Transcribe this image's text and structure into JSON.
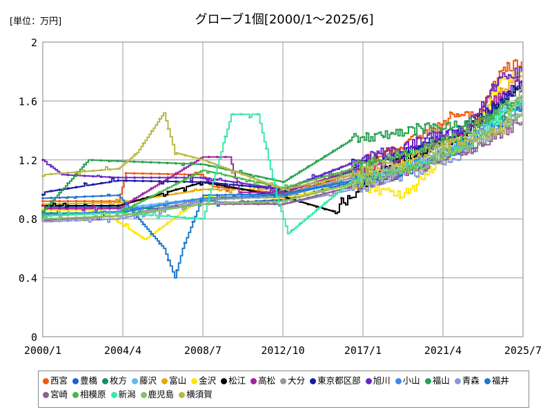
{
  "chart_data": {
    "type": "line",
    "title": "グローブ1個[2000/1～2025/6]",
    "unit_label": "[単位：万円]",
    "x_ticks": [
      "2000/1",
      "2004/4",
      "2008/7",
      "2012/10",
      "2017/1",
      "2021/4",
      "2025/7"
    ],
    "x_range": [
      "2000-01",
      "2025-07"
    ],
    "ylim": [
      0,
      2
    ],
    "y_ticks": [
      "0",
      "0.4",
      "0.8",
      "1.2",
      "1.6",
      "2"
    ],
    "grid": true,
    "legend_position": "bottom",
    "series": [
      {
        "name": "西宮",
        "color": "#f05a0a",
        "points": [
          [
            "2000-01",
            0.92
          ],
          [
            "2004-01",
            0.92
          ],
          [
            "2004-06",
            1.11
          ],
          [
            "2008-06",
            1.1
          ],
          [
            "2009-01",
            1.02
          ],
          [
            "2012-10",
            0.97
          ],
          [
            "2016-06",
            1.1
          ],
          [
            "2017-03",
            1.2
          ],
          [
            "2020-06",
            1.38
          ],
          [
            "2021-06",
            1.47
          ],
          [
            "2022-06",
            1.54
          ],
          [
            "2023-03",
            1.48
          ],
          [
            "2024-04",
            1.8
          ],
          [
            "2025-06",
            1.87
          ]
        ]
      },
      {
        "name": "豊橋",
        "color": "#1f5fd6",
        "points": [
          [
            "2000-01",
            0.88
          ],
          [
            "2003-06",
            0.88
          ],
          [
            "2006-01",
            0.87
          ],
          [
            "2008-07",
            0.9
          ],
          [
            "2012-10",
            0.93
          ],
          [
            "2016-06",
            1.05
          ],
          [
            "2019-06",
            1.12
          ],
          [
            "2022-06",
            1.3
          ],
          [
            "2024-01",
            1.55
          ],
          [
            "2025-06",
            1.7
          ]
        ]
      },
      {
        "name": "枚方",
        "color": "#149060",
        "points": [
          [
            "2000-01",
            0.84
          ],
          [
            "2004-01",
            0.84
          ],
          [
            "2007-06",
            0.92
          ],
          [
            "2008-07",
            0.92
          ],
          [
            "2012-10",
            0.99
          ],
          [
            "2016-06",
            1.12
          ],
          [
            "2019-06",
            1.24
          ],
          [
            "2022-06",
            1.4
          ],
          [
            "2024-06",
            1.56
          ],
          [
            "2025-06",
            1.6
          ]
        ]
      },
      {
        "name": "藤沢",
        "color": "#60b8f0",
        "points": [
          [
            "2000-01",
            0.86
          ],
          [
            "2004-01",
            0.87
          ],
          [
            "2008-07",
            0.94
          ],
          [
            "2012-10",
            0.97
          ],
          [
            "2016-06",
            1.08
          ],
          [
            "2019-06",
            1.19
          ],
          [
            "2022-06",
            1.34
          ],
          [
            "2025-06",
            1.62
          ]
        ]
      },
      {
        "name": "富山",
        "color": "#e8a800",
        "points": [
          [
            "2000-01",
            0.9
          ],
          [
            "2004-01",
            0.91
          ],
          [
            "2008-07",
            1.0
          ],
          [
            "2012-10",
            1.0
          ],
          [
            "2016-06",
            1.1
          ],
          [
            "2019-06",
            1.2
          ],
          [
            "2022-06",
            1.38
          ],
          [
            "2024-06",
            1.68
          ],
          [
            "2025-06",
            1.76
          ]
        ]
      },
      {
        "name": "金沢",
        "color": "#ffe600",
        "points": [
          [
            "2000-01",
            0.86
          ],
          [
            "2003-01",
            0.86
          ],
          [
            "2005-06",
            0.66
          ],
          [
            "2008-07",
            0.95
          ],
          [
            "2012-10",
            0.94
          ],
          [
            "2016-06",
            1.03
          ],
          [
            "2019-06",
            0.97
          ],
          [
            "2020-06",
            1.13
          ],
          [
            "2022-06",
            1.3
          ],
          [
            "2024-06",
            1.76
          ],
          [
            "2025-06",
            1.8
          ]
        ]
      },
      {
        "name": "松江",
        "color": "#000000",
        "points": [
          [
            "2000-01",
            0.89
          ],
          [
            "2004-01",
            0.89
          ],
          [
            "2008-07",
            1.05
          ],
          [
            "2012-10",
            0.95
          ],
          [
            "2015-06",
            0.85
          ],
          [
            "2016-06",
            0.97
          ],
          [
            "2017-06",
            1.08
          ],
          [
            "2019-06",
            1.22
          ],
          [
            "2022-06",
            1.38
          ],
          [
            "2024-06",
            1.62
          ],
          [
            "2025-06",
            1.68
          ]
        ]
      },
      {
        "name": "高松",
        "color": "#a020a0",
        "points": [
          [
            "2000-01",
            0.87
          ],
          [
            "2004-01",
            0.87
          ],
          [
            "2008-07",
            1.22
          ],
          [
            "2009-12",
            1.22
          ],
          [
            "2010-06",
            0.98
          ],
          [
            "2012-10",
            0.98
          ],
          [
            "2016-06",
            1.13
          ],
          [
            "2019-06",
            1.24
          ],
          [
            "2022-06",
            1.4
          ],
          [
            "2024-06",
            1.66
          ],
          [
            "2025-06",
            1.72
          ]
        ]
      },
      {
        "name": "大分",
        "color": "#909aa0",
        "points": [
          [
            "2000-01",
            0.8
          ],
          [
            "2004-01",
            0.82
          ],
          [
            "2008-07",
            0.93
          ],
          [
            "2012-10",
            0.95
          ],
          [
            "2016-06",
            1.08
          ],
          [
            "2019-06",
            1.14
          ],
          [
            "2022-06",
            1.3
          ],
          [
            "2024-06",
            1.4
          ],
          [
            "2025-06",
            1.58
          ]
        ]
      },
      {
        "name": "東京都区部",
        "color": "#1a1aa8",
        "points": [
          [
            "2000-01",
            0.98
          ],
          [
            "2004-01",
            1.06
          ],
          [
            "2008-07",
            1.05
          ],
          [
            "2012-10",
            1.0
          ],
          [
            "2016-06",
            1.18
          ],
          [
            "2019-06",
            1.25
          ],
          [
            "2022-06",
            1.42
          ],
          [
            "2024-06",
            1.6
          ],
          [
            "2025-06",
            1.74
          ]
        ]
      },
      {
        "name": "旭川",
        "color": "#6a28c8",
        "points": [
          [
            "2000-01",
            1.2
          ],
          [
            "2001-01",
            1.1
          ],
          [
            "2004-01",
            1.08
          ],
          [
            "2008-07",
            1.08
          ],
          [
            "2012-10",
            1.0
          ],
          [
            "2016-06",
            1.18
          ],
          [
            "2019-06",
            1.3
          ],
          [
            "2022-06",
            1.42
          ],
          [
            "2024-06",
            1.78
          ],
          [
            "2025-06",
            1.8
          ]
        ]
      },
      {
        "name": "小山",
        "color": "#3c88e8",
        "points": [
          [
            "2000-01",
            0.83
          ],
          [
            "2004-01",
            0.85
          ],
          [
            "2008-07",
            0.94
          ],
          [
            "2012-10",
            0.96
          ],
          [
            "2016-06",
            1.06
          ],
          [
            "2019-06",
            1.16
          ],
          [
            "2022-06",
            1.32
          ],
          [
            "2025-06",
            1.54
          ]
        ]
      },
      {
        "name": "福山",
        "color": "#28a050",
        "points": [
          [
            "2000-01",
            0.85
          ],
          [
            "2002-06",
            1.2
          ],
          [
            "2008-07",
            1.17
          ],
          [
            "2012-10",
            1.05
          ],
          [
            "2016-06",
            1.34
          ],
          [
            "2019-06",
            1.4
          ],
          [
            "2022-06",
            1.45
          ],
          [
            "2024-06",
            1.52
          ],
          [
            "2025-06",
            1.6
          ]
        ]
      },
      {
        "name": "青森",
        "color": "#8898d8",
        "points": [
          [
            "2000-01",
            0.78
          ],
          [
            "2004-01",
            0.8
          ],
          [
            "2008-07",
            0.92
          ],
          [
            "2012-10",
            0.9
          ],
          [
            "2016-06",
            1.0
          ],
          [
            "2019-06",
            1.1
          ],
          [
            "2022-06",
            1.25
          ],
          [
            "2025-06",
            1.5
          ]
        ]
      },
      {
        "name": "福井",
        "color": "#1e78c8",
        "points": [
          [
            "2000-01",
            0.94
          ],
          [
            "2004-01",
            0.96
          ],
          [
            "2006-06",
            0.6
          ],
          [
            "2007-01",
            0.4
          ],
          [
            "2007-06",
            0.6
          ],
          [
            "2008-07",
            0.96
          ],
          [
            "2012-10",
            0.97
          ],
          [
            "2016-06",
            1.06
          ],
          [
            "2019-06",
            1.14
          ],
          [
            "2022-06",
            1.28
          ],
          [
            "2025-06",
            1.56
          ]
        ]
      },
      {
        "name": "宮崎",
        "color": "#906090",
        "points": [
          [
            "2000-01",
            0.79
          ],
          [
            "2004-01",
            0.82
          ],
          [
            "2008-07",
            0.9
          ],
          [
            "2012-10",
            0.9
          ],
          [
            "2016-06",
            1.02
          ],
          [
            "2019-06",
            1.12
          ],
          [
            "2022-06",
            1.26
          ],
          [
            "2025-06",
            1.46
          ]
        ]
      },
      {
        "name": "相模原",
        "color": "#48b848",
        "points": [
          [
            "2000-01",
            0.82
          ],
          [
            "2004-01",
            0.84
          ],
          [
            "2008-07",
            1.13
          ],
          [
            "2012-10",
            1.01
          ],
          [
            "2016-06",
            1.14
          ],
          [
            "2019-06",
            1.26
          ],
          [
            "2022-06",
            1.38
          ],
          [
            "2025-06",
            1.64
          ]
        ]
      },
      {
        "name": "新潟",
        "color": "#38e8a8",
        "points": [
          [
            "2000-01",
            0.82
          ],
          [
            "2004-01",
            0.84
          ],
          [
            "2008-07",
            0.8
          ],
          [
            "2010-01",
            1.51
          ],
          [
            "2011-06",
            1.51
          ],
          [
            "2012-06",
            0.95
          ],
          [
            "2013-01",
            0.7
          ],
          [
            "2016-06",
            1.06
          ],
          [
            "2019-06",
            1.16
          ],
          [
            "2022-06",
            1.3
          ],
          [
            "2025-06",
            1.6
          ]
        ]
      },
      {
        "name": "鹿児島",
        "color": "#88c060",
        "points": [
          [
            "2000-01",
            0.8
          ],
          [
            "2004-01",
            0.82
          ],
          [
            "2008-07",
            0.9
          ],
          [
            "2012-10",
            0.92
          ],
          [
            "2016-06",
            1.04
          ],
          [
            "2019-06",
            1.14
          ],
          [
            "2022-06",
            1.28
          ],
          [
            "2025-06",
            1.52
          ]
        ]
      },
      {
        "name": "横須賀",
        "color": "#b8b848",
        "points": [
          [
            "2000-01",
            1.1
          ],
          [
            "2004-01",
            1.14
          ],
          [
            "2005-01",
            1.25
          ],
          [
            "2006-06",
            1.52
          ],
          [
            "2007-01",
            1.25
          ],
          [
            "2008-07",
            1.2
          ],
          [
            "2012-10",
            1.0
          ],
          [
            "2016-06",
            1.1
          ],
          [
            "2019-06",
            1.2
          ],
          [
            "2022-06",
            1.34
          ],
          [
            "2024-06",
            1.4
          ],
          [
            "2025-06",
            1.7
          ]
        ]
      }
    ]
  }
}
